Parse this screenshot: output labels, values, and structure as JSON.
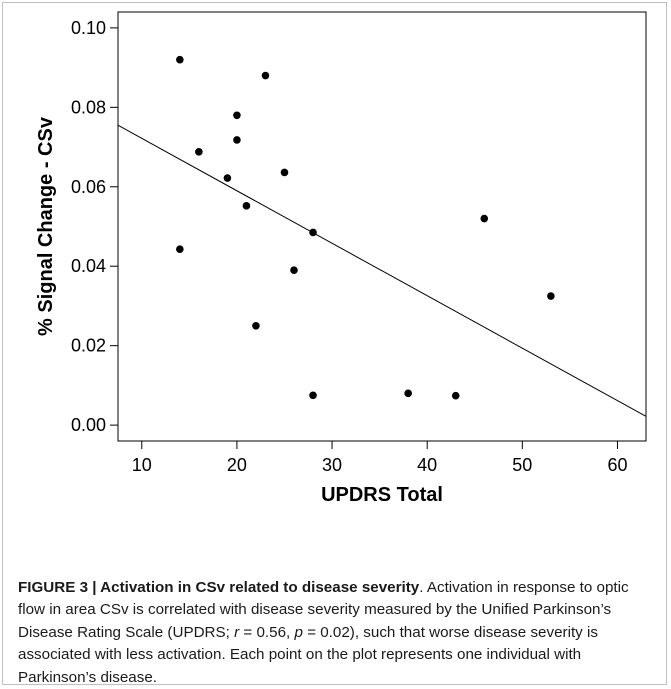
{
  "chart_data": {
    "type": "scatter",
    "title": "",
    "xlabel": "UPDRS Total",
    "ylabel": "% Signal Change - CSv",
    "xlim": [
      7.5,
      63
    ],
    "ylim": [
      -0.004,
      0.104
    ],
    "xticks": [
      10,
      20,
      30,
      40,
      50,
      60
    ],
    "xtick_labels": [
      "10",
      "20",
      "30",
      "40",
      "50",
      "60"
    ],
    "yticks": [
      0.0,
      0.02,
      0.04,
      0.06,
      0.08,
      0.1
    ],
    "ytick_labels": [
      "0.00",
      "0.02",
      "0.04",
      "0.06",
      "0.08",
      "0.10"
    ],
    "grid": false,
    "points": [
      {
        "x": 14,
        "y": 0.092
      },
      {
        "x": 14,
        "y": 0.0443
      },
      {
        "x": 16,
        "y": 0.0688
      },
      {
        "x": 19,
        "y": 0.0622
      },
      {
        "x": 20,
        "y": 0.078
      },
      {
        "x": 20,
        "y": 0.0718
      },
      {
        "x": 21,
        "y": 0.0552
      },
      {
        "x": 22,
        "y": 0.025
      },
      {
        "x": 23,
        "y": 0.088
      },
      {
        "x": 25,
        "y": 0.0636
      },
      {
        "x": 26,
        "y": 0.039
      },
      {
        "x": 28,
        "y": 0.0485
      },
      {
        "x": 28,
        "y": 0.0075
      },
      {
        "x": 38,
        "y": 0.008
      },
      {
        "x": 43,
        "y": 0.0074
      },
      {
        "x": 46,
        "y": 0.052
      },
      {
        "x": 53,
        "y": 0.0325
      }
    ],
    "regression_line": {
      "x": [
        7.5,
        63
      ],
      "y": [
        0.0755,
        0.0022
      ]
    }
  },
  "caption": {
    "label": "FIGURE 3 | ",
    "title": "Activation in CSv related to disease severity",
    "body_1": ". Activation in response to optic flow in area CSv is correlated with disease severity measured by the Unified Parkinson’s Disease Rating Scale (UPDRS; ",
    "r_symbol": "r",
    "r_text": " = 0.56, ",
    "p_symbol": "p",
    "body_2": " = 0.02), such that worse disease severity is associated with less activation. Each point on the plot represents one individual with Parkinson’s disease."
  }
}
